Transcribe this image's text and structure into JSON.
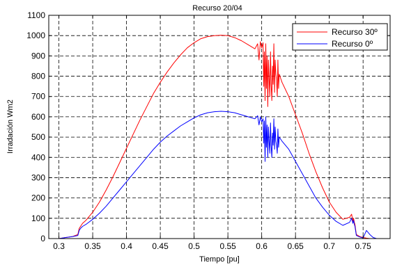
{
  "chart_data": {
    "type": "line",
    "title": "Recurso 20/04",
    "xlabel": "Tiempo [pu]",
    "ylabel": "Irradación Wm2",
    "xlim": [
      0.285,
      0.79
    ],
    "ylim": [
      0,
      1100
    ],
    "xticks": [
      0.3,
      0.35,
      0.4,
      0.45,
      0.5,
      0.55,
      0.6,
      0.65,
      0.7,
      0.75
    ],
    "xtick_labels": [
      "0.3",
      "0.35",
      "0.4",
      "0.45",
      "0.5",
      "0.55",
      "0.6",
      "0.65",
      "0.7",
      "0.75"
    ],
    "yticks": [
      0,
      100,
      200,
      300,
      400,
      500,
      600,
      700,
      800,
      900,
      1000,
      1100
    ],
    "ytick_labels": [
      "0",
      "100",
      "200",
      "300",
      "400",
      "500",
      "600",
      "700",
      "800",
      "900",
      "1000",
      "1100"
    ],
    "grid": true,
    "legend_position": "top-right",
    "series": [
      {
        "name": "Recurso 30º",
        "color": "#ff0000",
        "x": [
          0.3,
          0.31,
          0.32,
          0.328,
          0.33,
          0.332,
          0.335,
          0.34,
          0.35,
          0.36,
          0.37,
          0.38,
          0.39,
          0.4,
          0.41,
          0.42,
          0.43,
          0.44,
          0.45,
          0.46,
          0.47,
          0.48,
          0.49,
          0.5,
          0.51,
          0.52,
          0.53,
          0.54,
          0.55,
          0.56,
          0.57,
          0.58,
          0.59,
          0.594,
          0.596,
          0.598,
          0.6,
          0.602,
          0.603,
          0.604,
          0.605,
          0.606,
          0.607,
          0.608,
          0.609,
          0.61,
          0.611,
          0.612,
          0.613,
          0.614,
          0.615,
          0.616,
          0.617,
          0.618,
          0.619,
          0.62,
          0.621,
          0.622,
          0.623,
          0.624,
          0.625,
          0.626,
          0.628,
          0.63,
          0.64,
          0.65,
          0.66,
          0.67,
          0.68,
          0.69,
          0.7,
          0.71,
          0.72,
          0.73,
          0.733,
          0.735,
          0.736,
          0.737,
          0.738,
          0.74,
          0.745,
          0.75,
          0.755,
          0.76,
          0.765,
          0.77
        ],
        "y": [
          0,
          5,
          10,
          20,
          50,
          60,
          75,
          90,
          130,
          180,
          240,
          305,
          375,
          445,
          515,
          585,
          650,
          715,
          770,
          820,
          865,
          905,
          940,
          965,
          985,
          995,
          1000,
          1002,
          1000,
          990,
          975,
          955,
          935,
          960,
          880,
          970,
          940,
          965,
          750,
          920,
          680,
          960,
          740,
          900,
          650,
          880,
          790,
          700,
          920,
          760,
          680,
          850,
          760,
          960,
          720,
          880,
          810,
          780,
          700,
          880,
          740,
          810,
          790,
          770,
          700,
          610,
          520,
          420,
          330,
          250,
          180,
          130,
          95,
          105,
          120,
          85,
          100,
          80,
          70,
          20,
          10,
          5,
          2,
          0,
          0,
          0
        ]
      },
      {
        "name": "Recurso 0º",
        "color": "#0000ff",
        "x": [
          0.3,
          0.31,
          0.32,
          0.328,
          0.33,
          0.332,
          0.335,
          0.34,
          0.35,
          0.36,
          0.37,
          0.38,
          0.39,
          0.4,
          0.41,
          0.42,
          0.43,
          0.44,
          0.45,
          0.46,
          0.47,
          0.48,
          0.49,
          0.5,
          0.51,
          0.52,
          0.53,
          0.54,
          0.55,
          0.56,
          0.57,
          0.58,
          0.59,
          0.594,
          0.596,
          0.598,
          0.6,
          0.602,
          0.603,
          0.604,
          0.605,
          0.606,
          0.607,
          0.608,
          0.609,
          0.61,
          0.611,
          0.612,
          0.613,
          0.614,
          0.615,
          0.616,
          0.617,
          0.618,
          0.619,
          0.62,
          0.621,
          0.622,
          0.623,
          0.624,
          0.625,
          0.626,
          0.628,
          0.63,
          0.64,
          0.65,
          0.66,
          0.67,
          0.68,
          0.69,
          0.7,
          0.71,
          0.72,
          0.73,
          0.733,
          0.735,
          0.736,
          0.737,
          0.738,
          0.74,
          0.745,
          0.75,
          0.755,
          0.76,
          0.765,
          0.77
        ],
        "y": [
          0,
          5,
          10,
          15,
          40,
          50,
          60,
          70,
          95,
          125,
          160,
          200,
          240,
          280,
          320,
          360,
          400,
          440,
          475,
          505,
          530,
          555,
          575,
          595,
          610,
          620,
          625,
          627,
          625,
          620,
          610,
          600,
          590,
          605,
          560,
          600,
          575,
          590,
          470,
          580,
          380,
          600,
          450,
          560,
          400,
          550,
          480,
          420,
          570,
          460,
          400,
          520,
          460,
          590,
          440,
          550,
          480,
          460,
          420,
          540,
          450,
          500,
          490,
          480,
          440,
          380,
          320,
          260,
          200,
          155,
          115,
          85,
          65,
          80,
          100,
          75,
          90,
          70,
          60,
          15,
          8,
          3,
          40,
          20,
          5,
          0
        ]
      }
    ]
  }
}
